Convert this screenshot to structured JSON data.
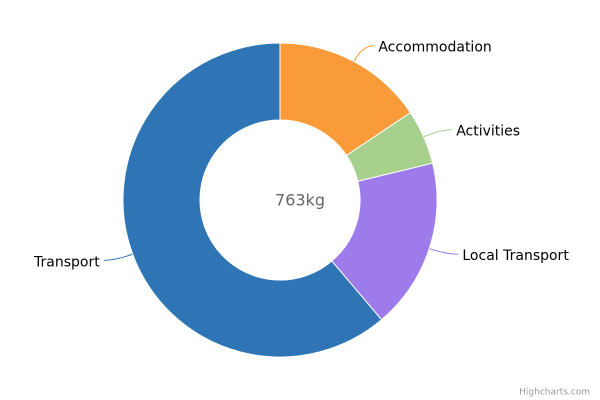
{
  "chart_data": {
    "type": "donut",
    "center_label": "763kg",
    "categories": [
      "Accommodation",
      "Activities",
      "Local Transport",
      "Transport"
    ],
    "values": [
      119,
      43,
      134,
      467
    ],
    "colors": [
      "#f99b38",
      "#a8d08d",
      "#9e7bea",
      "#2f75b5"
    ],
    "credits": "Highcharts.com"
  }
}
